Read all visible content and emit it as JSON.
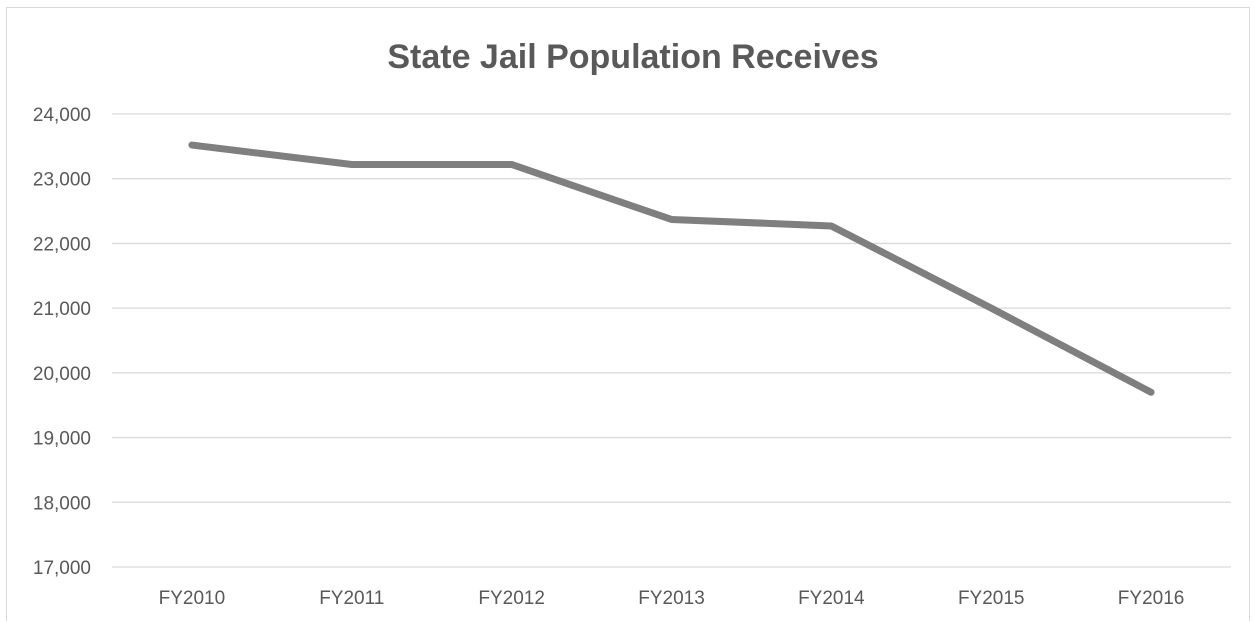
{
  "chart_data": {
    "type": "line",
    "title": "State Jail Population Receives",
    "xlabel": "",
    "ylabel": "",
    "categories": [
      "FY2010",
      "FY2011",
      "FY2012",
      "FY2013",
      "FY2014",
      "FY2015",
      "FY2016"
    ],
    "series": [
      {
        "values": [
          23520,
          23220,
          23220,
          22370,
          22270,
          21000,
          19700
        ]
      }
    ],
    "ylim": [
      17000,
      24000
    ],
    "yticks": [
      17000,
      18000,
      19000,
      20000,
      21000,
      22000,
      23000,
      24000
    ],
    "ytick_labels": [
      "17,000",
      "18,000",
      "19,000",
      "20,000",
      "21,000",
      "22,000",
      "23,000",
      "24,000"
    ],
    "grid": true,
    "legend": "none",
    "colors": {
      "line": "#7f7f7f",
      "grid": "#d9d9d9",
      "text": "#595959"
    }
  }
}
